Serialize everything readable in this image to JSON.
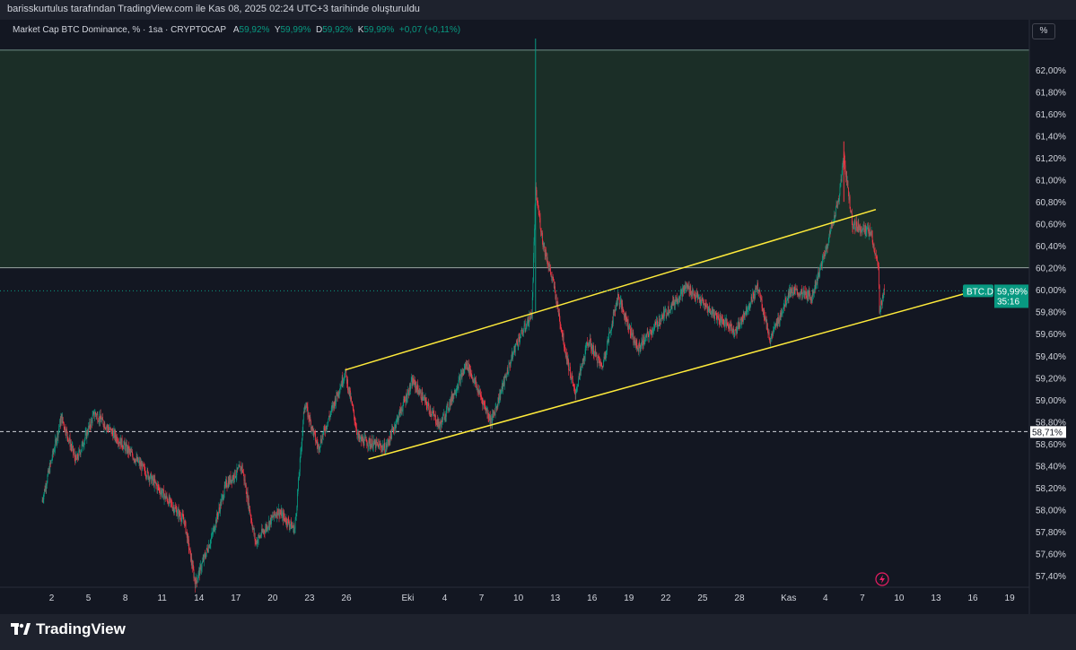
{
  "header": {
    "credit": "barisskurtulus tarafından TradingView.com ile Kas 08, 2025 02:24 UTC+3 tarihinde oluşturuldu"
  },
  "legend": {
    "title": "Market Cap BTC Dominance, % · 1sa · CRYPTOCAP",
    "o_label": "A",
    "o": "59,92%",
    "h_label": "Y",
    "h": "59,99%",
    "l_label": "D",
    "l": "59,92%",
    "c_label": "K",
    "c": "59,99%",
    "change": "+0,07 (+0,11%)"
  },
  "scale_button": "%",
  "footer": {
    "brand": "TradingView"
  },
  "colors": {
    "up": "#089981",
    "down": "#f23645",
    "channel": "#ffeb3b",
    "zone": "#1b2e27",
    "bg": "#131722"
  },
  "chart_data": {
    "type": "candlestick",
    "interval": "1h",
    "symbol_tag": "BTC.D",
    "last_price": "59,99%",
    "countdown": "35:16",
    "marked_level": "58,71%",
    "marked_level_value": 58.71,
    "ylim": [
      57.3,
      62.3
    ],
    "y_ticks": [
      "57,40%",
      "57,60%",
      "57,80%",
      "58,00%",
      "58,20%",
      "58,40%",
      "58,60%",
      "58,80%",
      "59,00%",
      "59,20%",
      "59,40%",
      "59,60%",
      "59,80%",
      "60,00%",
      "60,20%",
      "60,40%",
      "60,60%",
      "60,80%",
      "61,00%",
      "61,20%",
      "61,40%",
      "61,60%",
      "61,80%",
      "62,00%"
    ],
    "y_tick_values": [
      57.4,
      57.6,
      57.8,
      58.0,
      58.2,
      58.4,
      58.6,
      58.8,
      59.0,
      59.2,
      59.4,
      59.6,
      59.8,
      60.0,
      60.2,
      60.4,
      60.6,
      60.8,
      61.0,
      61.2,
      61.4,
      61.6,
      61.8,
      62.0
    ],
    "x_ticks": [
      "2",
      "5",
      "8",
      "11",
      "14",
      "17",
      "20",
      "23",
      "26",
      "Eki",
      "4",
      "7",
      "10",
      "13",
      "16",
      "19",
      "22",
      "25",
      "28",
      "Kas",
      "4",
      "7",
      "10",
      "13",
      "16",
      "19"
    ],
    "x_tick_days": [
      1,
      4,
      7,
      10,
      13,
      16,
      19,
      22,
      25,
      30,
      33,
      36,
      39,
      42,
      45,
      48,
      51,
      54,
      57,
      61,
      64,
      67,
      70,
      73,
      76,
      79
    ],
    "xlim_days": [
      -3.2,
      80.6
    ],
    "zone": {
      "from": 60.2,
      "to": 62.18
    },
    "channel_upper": [
      [
        24.9,
        59.27
      ],
      [
        68.1,
        60.73
      ]
    ],
    "channel_lower": [
      [
        26.8,
        58.46
      ],
      [
        75.5,
        59.97
      ]
    ],
    "price_path_days_values": [
      [
        0.2,
        58.07
      ],
      [
        1.8,
        58.84
      ],
      [
        3,
        58.44
      ],
      [
        4.5,
        58.88
      ],
      [
        7.7,
        58.48
      ],
      [
        10.3,
        58.11
      ],
      [
        11.8,
        57.9
      ],
      [
        12.7,
        57.33
      ],
      [
        14,
        57.74
      ],
      [
        15.2,
        58.23
      ],
      [
        16.5,
        58.39
      ],
      [
        17.6,
        57.7
      ],
      [
        19.4,
        57.99
      ],
      [
        20.8,
        57.82
      ],
      [
        21.6,
        58.97
      ],
      [
        22.7,
        58.56
      ],
      [
        24.9,
        59.25
      ],
      [
        26,
        58.64
      ],
      [
        28.2,
        58.56
      ],
      [
        30.4,
        59.17
      ],
      [
        32.6,
        58.76
      ],
      [
        34.8,
        59.33
      ],
      [
        36.8,
        58.8
      ],
      [
        38.8,
        59.5
      ],
      [
        40.1,
        59.78
      ],
      [
        40.4,
        60.9
      ],
      [
        41,
        60.43
      ],
      [
        41.9,
        60.03
      ],
      [
        42.8,
        59.46
      ],
      [
        43.6,
        59.05
      ],
      [
        44.7,
        59.54
      ],
      [
        45.8,
        59.29
      ],
      [
        47.1,
        59.94
      ],
      [
        48.7,
        59.46
      ],
      [
        50.9,
        59.78
      ],
      [
        52.7,
        60.03
      ],
      [
        54.5,
        59.82
      ],
      [
        56.7,
        59.62
      ],
      [
        58.5,
        60.03
      ],
      [
        59.5,
        59.54
      ],
      [
        61.1,
        59.99
      ],
      [
        62.9,
        59.94
      ],
      [
        64,
        60.35
      ],
      [
        65.1,
        60.84
      ],
      [
        65.5,
        61.2
      ],
      [
        66.2,
        60.6
      ],
      [
        67.7,
        60.52
      ],
      [
        68.3,
        60.19
      ],
      [
        68.4,
        59.82
      ],
      [
        68.8,
        59.99
      ]
    ]
  }
}
